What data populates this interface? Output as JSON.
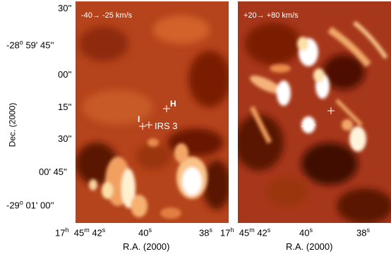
{
  "panels": {
    "left": {
      "velocity_label": "-40→ -25 km/s"
    },
    "right": {
      "velocity_label": "+20→ +80 km/s"
    }
  },
  "markers": {
    "h_label": "H",
    "i_label": "I",
    "irs3_label": "IRS 3"
  },
  "y_axis": {
    "title": "Dec. (2000)",
    "ticks": [
      {
        "deg": "",
        "min": "",
        "sec": "30''"
      },
      {
        "deg": "-28",
        "min": "59'",
        "sec": "45''"
      },
      {
        "deg": "",
        "min": "",
        "sec": "00''"
      },
      {
        "deg": "",
        "min": "",
        "sec": "15''"
      },
      {
        "deg": "",
        "min": "",
        "sec": "30''"
      },
      {
        "deg": "",
        "min": "00'",
        "sec": "45''"
      },
      {
        "deg": "-29",
        "min": "01'",
        "sec": "00''"
      }
    ]
  },
  "x_axis": {
    "title": "R.A. (2000)",
    "left_ticks": {
      "h": "17",
      "m": "45",
      "s42": "42",
      "s40": "40",
      "s38": "38"
    },
    "right_ticks": {
      "h": "17",
      "m": "45",
      "s42": "42",
      "s40": "40",
      "s38": "38"
    }
  },
  "colors": {
    "low": "#5a0a00",
    "mid": "#c8461a",
    "high": "#ffffff"
  }
}
